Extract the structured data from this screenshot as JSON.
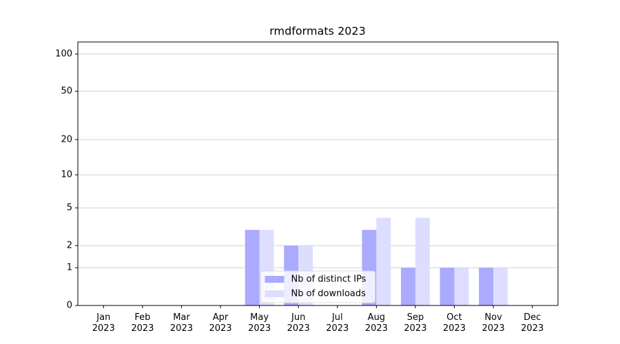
{
  "chart_data": {
    "type": "bar",
    "title": "rmdformats 2023",
    "categories": [
      "Jan 2023",
      "Feb 2023",
      "Mar 2023",
      "Apr 2023",
      "May 2023",
      "Jun 2023",
      "Jul 2023",
      "Aug 2023",
      "Sep 2023",
      "Oct 2023",
      "Nov 2023",
      "Dec 2023"
    ],
    "series": [
      {
        "name": "Nb of distinct IPs",
        "color": "#aaaaff",
        "values": [
          0,
          0,
          0,
          0,
          3,
          2,
          0,
          3,
          1,
          1,
          1,
          0
        ]
      },
      {
        "name": "Nb of downloads",
        "color": "#ddddff",
        "values": [
          0,
          0,
          0,
          0,
          3,
          2,
          0,
          4,
          4,
          1,
          1,
          0
        ]
      }
    ],
    "yscale": "log1p",
    "ylim": [
      0,
      125
    ],
    "yticks": [
      0,
      1,
      2,
      5,
      10,
      20,
      50,
      100
    ],
    "grid": true,
    "legend": "lower center"
  }
}
